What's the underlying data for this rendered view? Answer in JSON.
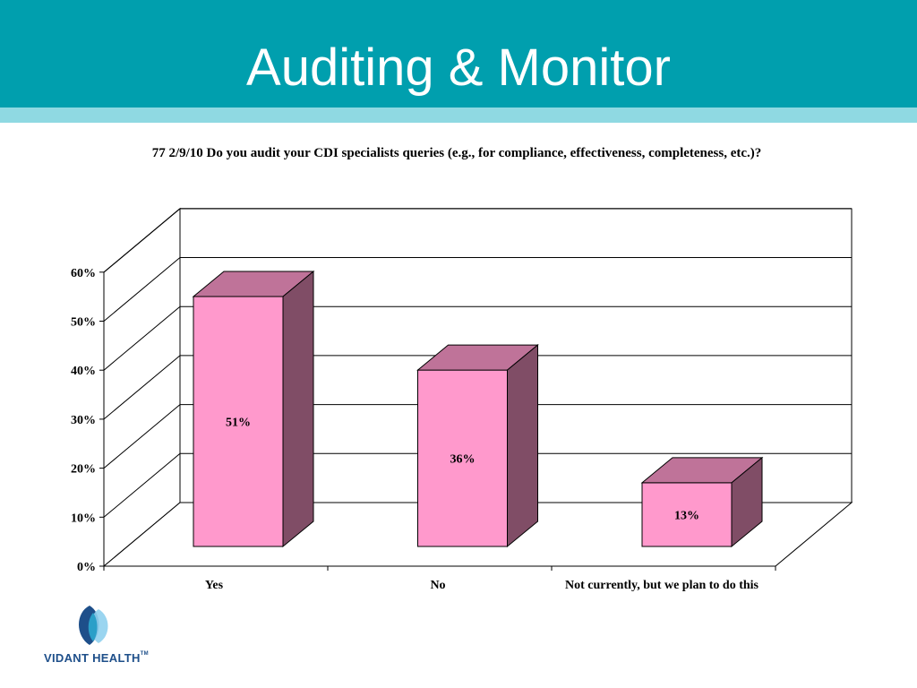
{
  "slide": {
    "title": "Auditing & Monitor"
  },
  "logo": {
    "text": "VIDANT HEALTH",
    "tm": "TM"
  },
  "colors": {
    "header": "#009fae",
    "stripe": "#8fd9e2",
    "bar_front": "#ff99cc",
    "bar_top": "#bf7399",
    "bar_side": "#804d66"
  },
  "chart_data": {
    "type": "bar",
    "title": "77 2/9/10 Do you audit your CDI specialists queries (e.g., for compliance, effectiveness, completeness, etc.)?",
    "categories": [
      "Yes",
      "No",
      "Not currently, but we plan to do this"
    ],
    "values": [
      51,
      36,
      13
    ],
    "data_labels": [
      "51%",
      "36%",
      "13%"
    ],
    "y_ticks": [
      "0%",
      "10%",
      "20%",
      "30%",
      "40%",
      "50%",
      "60%"
    ],
    "ylim": [
      0,
      60
    ],
    "grid": true,
    "legend": "none",
    "style": "3d"
  }
}
